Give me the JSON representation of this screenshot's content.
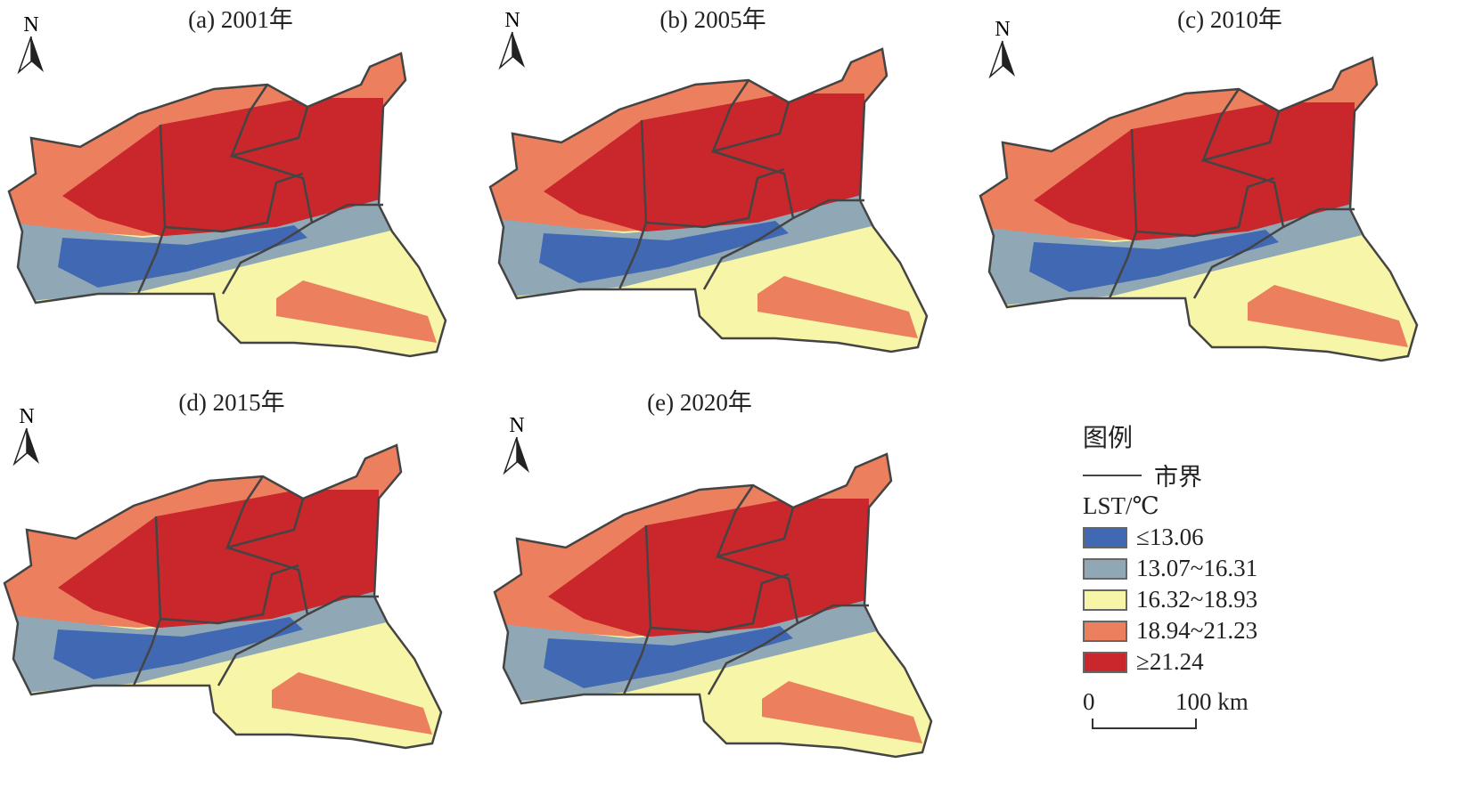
{
  "panels": [
    {
      "title": "(a) 2001年"
    },
    {
      "title": "(b) 2005年"
    },
    {
      "title": "(c) 2010年"
    },
    {
      "title": "(d) 2015年"
    },
    {
      "title": "(e) 2020年"
    }
  ],
  "north_label": "N",
  "legend": {
    "title": "图例",
    "boundary_label": "市界",
    "variable": "LST/℃",
    "classes": [
      {
        "label": "≤13.06",
        "color": "#4169b3"
      },
      {
        "label": "13.07~16.31",
        "color": "#90a8b6"
      },
      {
        "label": "16.32~18.93",
        "color": "#f6f5a8"
      },
      {
        "label": "18.94~21.23",
        "color": "#ec7f5e"
      },
      {
        "label": "≥21.24",
        "color": "#c9272b"
      }
    ]
  },
  "scale_bar": {
    "start": "0",
    "end": "100 km"
  }
}
